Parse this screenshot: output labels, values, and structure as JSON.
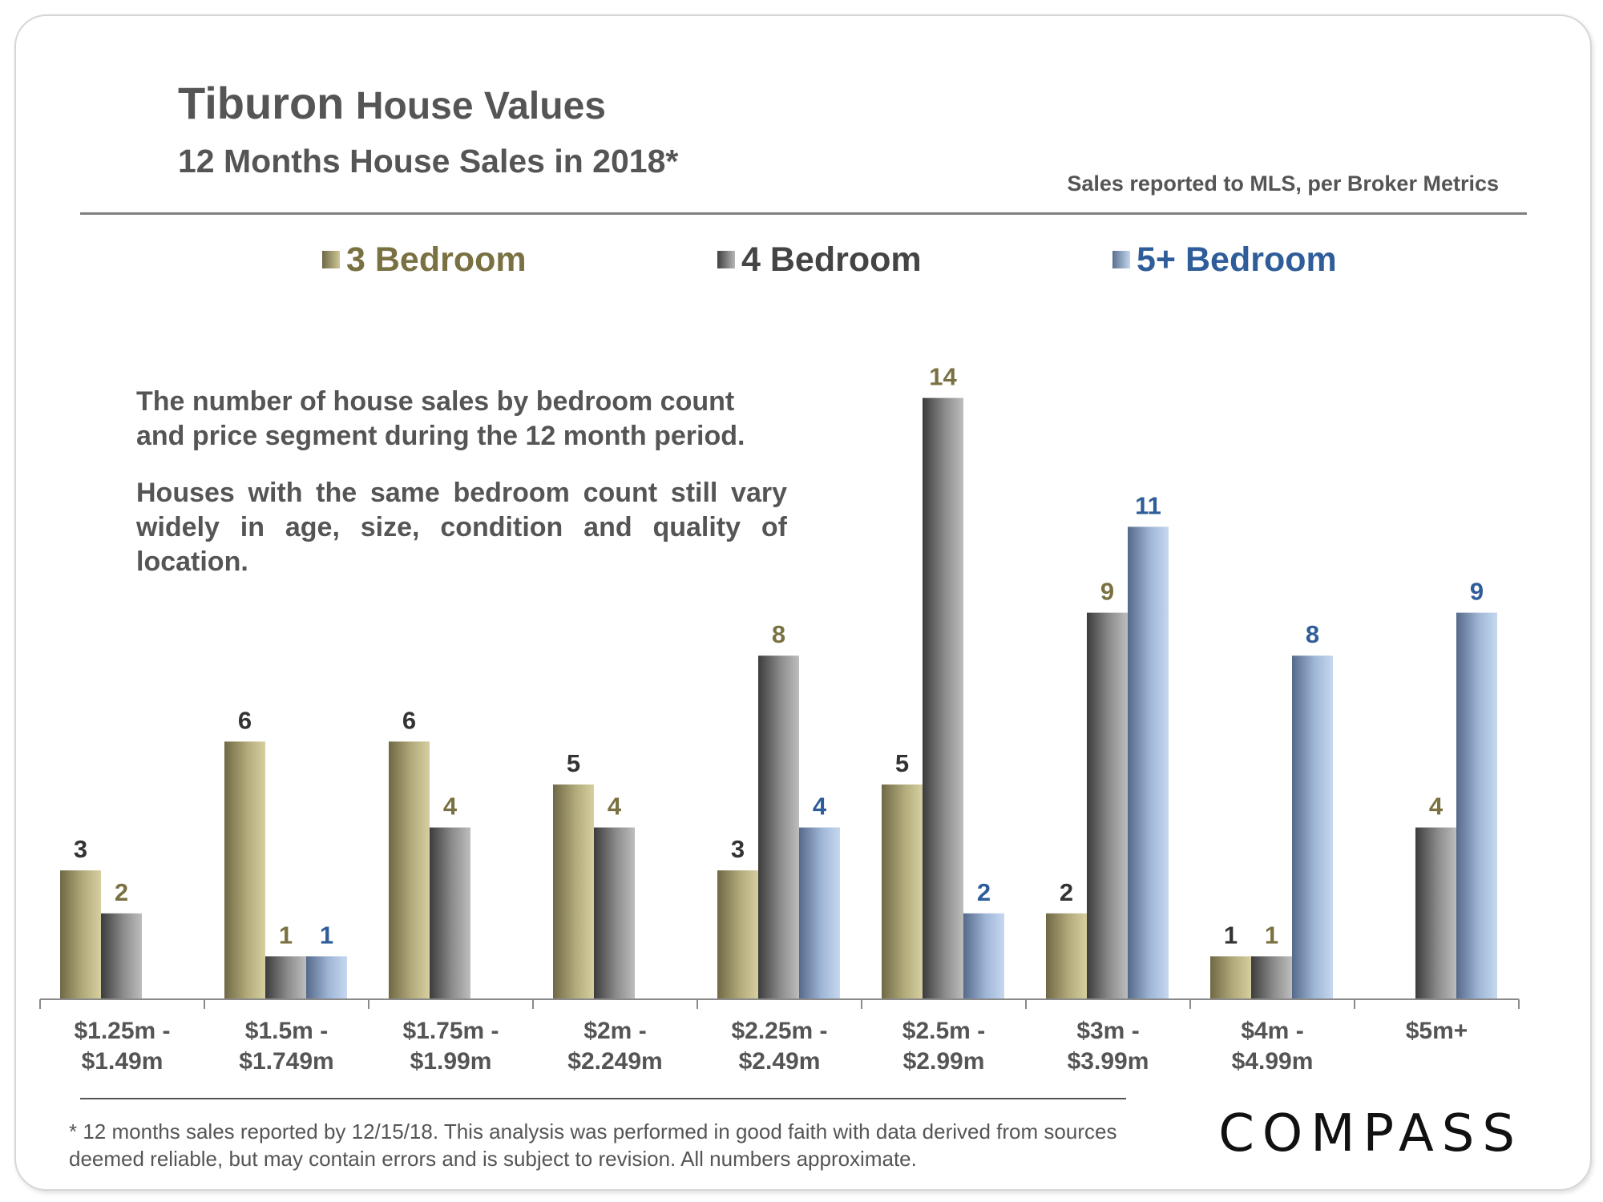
{
  "header": {
    "title_place": "Tiburon",
    "title_rest": "House Values",
    "subtitle": "12 Months House Sales in 2018*",
    "source_note": "Sales reported to MLS, per Broker Metrics"
  },
  "description": {
    "para1": "The number of house sales by bedroom count and price segment during the 12 month period.",
    "para2": "Houses with the same bedroom count still vary widely in age, size, condition and quality of location."
  },
  "footer": {
    "footnote": "* 12 months sales reported by 12/15/18. This analysis was performed in good faith with data derived from sources deemed reliable, but may contain errors and is subject to revision. All numbers approximate.",
    "logo": "COMPASS"
  },
  "colors": {
    "bed3": "#7a7142",
    "bed4": "#444444",
    "bed5": "#2f5d9a",
    "axis": "#888888"
  },
  "chart_data": {
    "type": "bar",
    "title": "Tiburon House Values",
    "xlabel": "",
    "ylabel": "",
    "ylim": [
      0,
      14
    ],
    "categories": [
      [
        "$1.25m -",
        "$1.49m"
      ],
      [
        "$1.5m -",
        "$1.749m"
      ],
      [
        "$1.75m -",
        "$1.99m"
      ],
      [
        "$2m -",
        "$2.249m"
      ],
      [
        "$2.25m -",
        "$2.49m"
      ],
      [
        "$2.5m -",
        "$2.99m"
      ],
      [
        "$3m -",
        "$3.99m"
      ],
      [
        "$4m -",
        "$4.99m"
      ],
      [
        "$5m+"
      ]
    ],
    "series": [
      {
        "name": "3 Bedroom",
        "key": "bed3",
        "values": [
          3,
          6,
          6,
          5,
          3,
          5,
          2,
          1,
          null
        ]
      },
      {
        "name": "4 Bedroom",
        "key": "bed4",
        "values": [
          2,
          1,
          4,
          4,
          8,
          14,
          9,
          1,
          4
        ]
      },
      {
        "name": "5+ Bedroom",
        "key": "bed5",
        "values": [
          null,
          1,
          null,
          null,
          4,
          2,
          11,
          8,
          9
        ]
      }
    ],
    "legend_position": "top"
  }
}
